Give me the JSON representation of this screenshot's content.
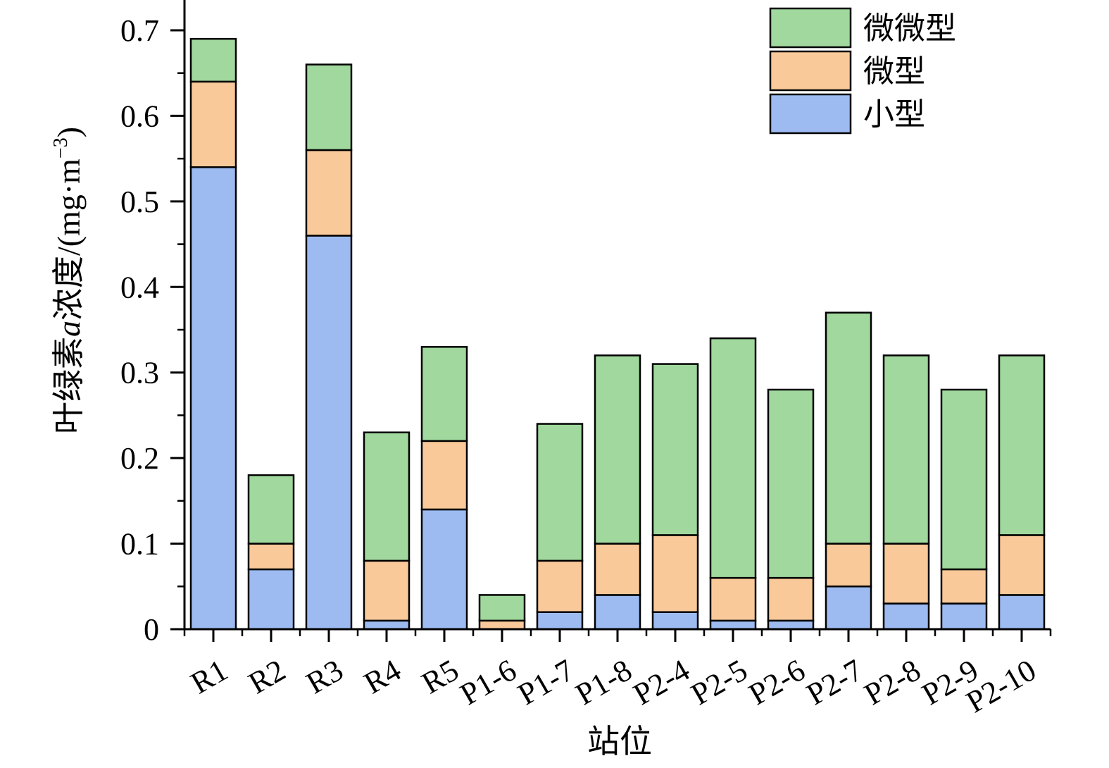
{
  "chart_data": {
    "type": "bar",
    "stacked": true,
    "categories": [
      "R1",
      "R2",
      "R3",
      "R4",
      "R5",
      "P1-6",
      "P1-7",
      "P1-8",
      "P2-4",
      "P2-5",
      "P2-6",
      "P2-7",
      "P2-8",
      "P2-9",
      "P2-10"
    ],
    "series": [
      {
        "name": "小型",
        "color": "#9DBBF1",
        "values": [
          0.54,
          0.07,
          0.46,
          0.01,
          0.14,
          0.0,
          0.02,
          0.04,
          0.02,
          0.01,
          0.01,
          0.05,
          0.03,
          0.03,
          0.04
        ]
      },
      {
        "name": "微型",
        "color": "#F9C99A",
        "values": [
          0.1,
          0.03,
          0.1,
          0.07,
          0.08,
          0.01,
          0.06,
          0.06,
          0.09,
          0.05,
          0.05,
          0.05,
          0.07,
          0.04,
          0.07
        ]
      },
      {
        "name": "微微型",
        "color": "#A0D89E",
        "values": [
          0.05,
          0.08,
          0.1,
          0.15,
          0.11,
          0.03,
          0.16,
          0.22,
          0.2,
          0.28,
          0.22,
          0.27,
          0.22,
          0.21,
          0.21
        ]
      }
    ],
    "legend_order": [
      "微微型",
      "微型",
      "小型"
    ],
    "ylim": [
      0,
      0.7
    ],
    "yticks": [
      0,
      0.1,
      0.2,
      0.3,
      0.4,
      0.5,
      0.6,
      0.7
    ],
    "ytick_labels": [
      "0",
      "0.1",
      "0.2",
      "0.3",
      "0.4",
      "0.5",
      "0.6",
      "0.7"
    ],
    "xlabel": "站位",
    "ylabel": "叶绿素a浓度/(mg·m⁻³)",
    "ylabel_parts": {
      "before": "叶绿素",
      "italic": "a",
      "after": "浓度/(mg·m",
      "sup": "−3",
      "close": ")"
    },
    "legend_position": "top-right",
    "grid": false
  }
}
